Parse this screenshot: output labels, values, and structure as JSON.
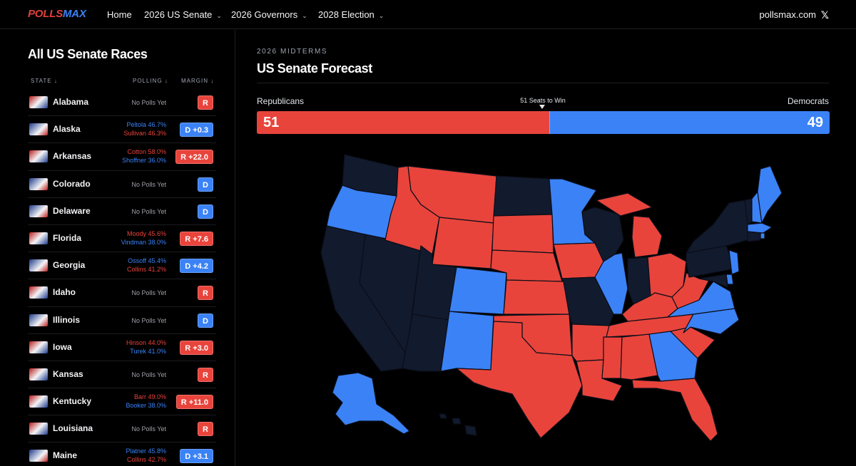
{
  "nav": {
    "logo_red": "POLLS",
    "logo_blue": "MAX",
    "items": [
      {
        "label": "Home",
        "chevron": false
      },
      {
        "label": "2026 US Senate",
        "chevron": true
      },
      {
        "label": "2026 Governors",
        "chevron": true
      },
      {
        "label": "2028 Election",
        "chevron": true
      }
    ],
    "site": "pollsmax.com",
    "social_icon": "x-logo-icon"
  },
  "sidebar": {
    "title": "All US Senate Races",
    "columns": {
      "state": "STATE ↓",
      "polling": "POLLING ↓",
      "margin": "MARGIN ↓"
    },
    "rows": [
      {
        "state": "Alabama",
        "flag": "alabama-flag-icon",
        "polls": [],
        "no_polls": "No Polls Yet",
        "margin": "R",
        "party": "r"
      },
      {
        "state": "Alaska",
        "flag": "alaska-flag-icon",
        "polls": [
          {
            "text": "Peltola 46.7%",
            "party": "d"
          },
          {
            "text": "Sullivan 46.3%",
            "party": "r"
          }
        ],
        "margin": "D +0.3",
        "party": "d"
      },
      {
        "state": "Arkansas",
        "flag": "arkansas-flag-icon",
        "polls": [
          {
            "text": "Cotton 58.0%",
            "party": "r"
          },
          {
            "text": "Shoffner 36.0%",
            "party": "d"
          }
        ],
        "margin": "R +22.0",
        "party": "r"
      },
      {
        "state": "Colorado",
        "flag": "colorado-flag-icon",
        "polls": [],
        "no_polls": "No Polls Yet",
        "margin": "D",
        "party": "d"
      },
      {
        "state": "Delaware",
        "flag": "delaware-flag-icon",
        "polls": [],
        "no_polls": "No Polls Yet",
        "margin": "D",
        "party": "d"
      },
      {
        "state": "Florida",
        "flag": "florida-flag-icon",
        "polls": [
          {
            "text": "Moody 45.6%",
            "party": "r"
          },
          {
            "text": "Vindman 38.0%",
            "party": "d"
          }
        ],
        "margin": "R +7.6",
        "party": "r"
      },
      {
        "state": "Georgia",
        "flag": "georgia-flag-icon",
        "polls": [
          {
            "text": "Ossoff 45.4%",
            "party": "d"
          },
          {
            "text": "Collins 41.2%",
            "party": "r"
          }
        ],
        "margin": "D +4.2",
        "party": "d"
      },
      {
        "state": "Idaho",
        "flag": "idaho-flag-icon",
        "polls": [],
        "no_polls": "No Polls Yet",
        "margin": "R",
        "party": "r"
      },
      {
        "state": "Illinois",
        "flag": "illinois-flag-icon",
        "polls": [],
        "no_polls": "No Polls Yet",
        "margin": "D",
        "party": "d"
      },
      {
        "state": "Iowa",
        "flag": "iowa-flag-icon",
        "polls": [
          {
            "text": "Hinson 44.0%",
            "party": "r"
          },
          {
            "text": "Turek 41.0%",
            "party": "d"
          }
        ],
        "margin": "R +3.0",
        "party": "r"
      },
      {
        "state": "Kansas",
        "flag": "kansas-flag-icon",
        "polls": [],
        "no_polls": "No Polls Yet",
        "margin": "R",
        "party": "r"
      },
      {
        "state": "Kentucky",
        "flag": "kentucky-flag-icon",
        "polls": [
          {
            "text": "Barr 49.0%",
            "party": "r"
          },
          {
            "text": "Booker 38.0%",
            "party": "d"
          }
        ],
        "margin": "R +11.0",
        "party": "r"
      },
      {
        "state": "Louisiana",
        "flag": "louisiana-flag-icon",
        "polls": [],
        "no_polls": "No Polls Yet",
        "margin": "R",
        "party": "r"
      },
      {
        "state": "Maine",
        "flag": "maine-flag-icon",
        "polls": [
          {
            "text": "Platner 45.8%",
            "party": "d"
          },
          {
            "text": "Collins 42.7%",
            "party": "r"
          }
        ],
        "margin": "D +3.1",
        "party": "d"
      }
    ]
  },
  "main": {
    "kicker": "2026 MIDTERMS",
    "title": "US Senate Forecast",
    "rep_label": "Republicans",
    "dem_label": "Democrats",
    "seats_to_win": "51 Seats to Win",
    "rep_seats": 51,
    "dem_seats": 49
  },
  "colors": {
    "republican": "#e8443c",
    "democrat": "#3b82f6",
    "no_race": "#121a2e",
    "background": "#000000"
  }
}
